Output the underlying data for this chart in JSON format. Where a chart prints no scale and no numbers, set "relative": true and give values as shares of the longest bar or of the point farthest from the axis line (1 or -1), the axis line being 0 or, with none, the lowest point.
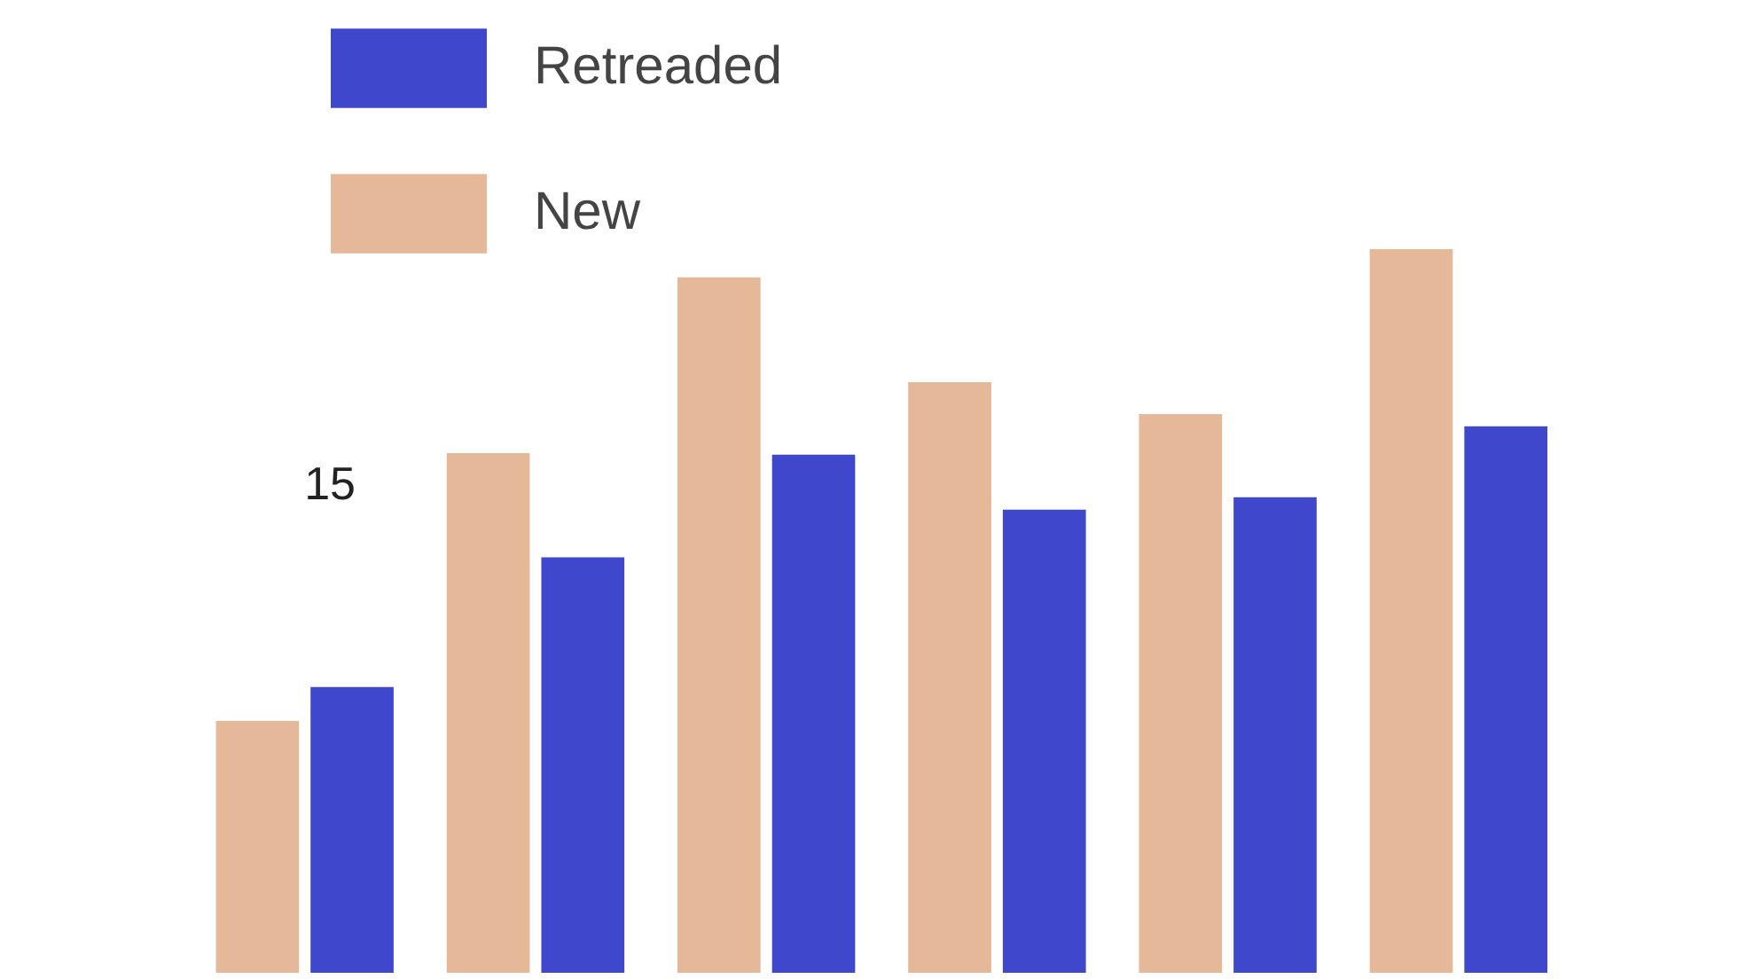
{
  "chart_data": {
    "type": "bar",
    "categories": [
      null,
      null,
      null,
      null,
      null,
      null
    ],
    "relative": true,
    "series": [
      {
        "name": "New",
        "color": "#e6b89a",
        "values": [
          0.348,
          0.718,
          0.961,
          0.816,
          0.772,
          1
        ]
      },
      {
        "name": "Retreaded",
        "color": "#3f48cc",
        "values": [
          0.395,
          0.574,
          0.716,
          0.64,
          0.657,
          0.755
        ]
      }
    ],
    "annotations": [
      "15"
    ],
    "grid": false,
    "legend": "top left",
    "tick_labels": false
  }
}
